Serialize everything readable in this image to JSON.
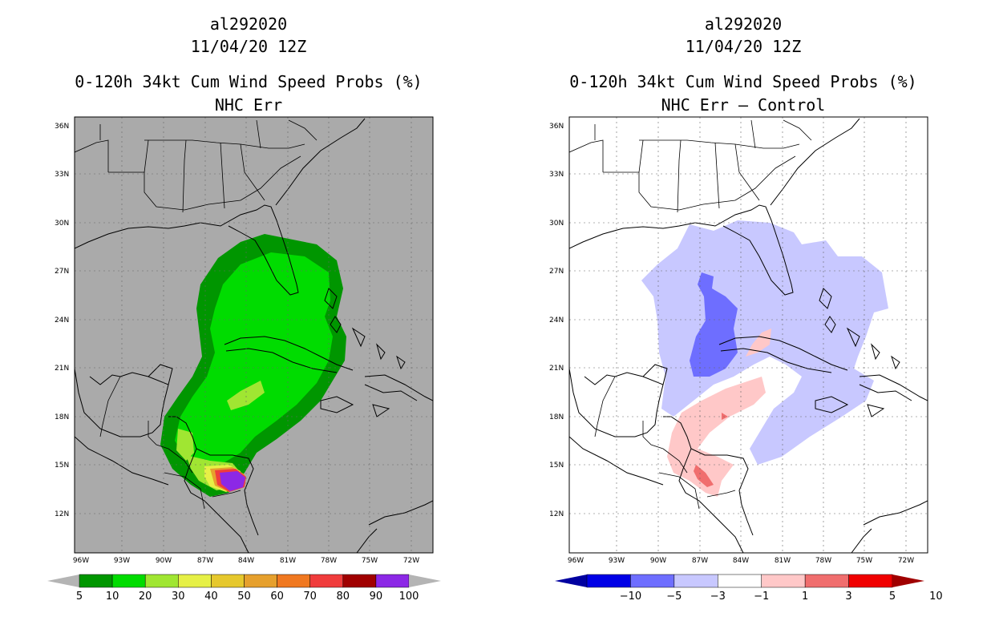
{
  "left_panel": {
    "storm_id": "al292020",
    "datetime": "11/04/20 12Z",
    "product": "0-120h 34kt Cum Wind Speed Probs (%)",
    "subtitle": "NHC Err",
    "lat_labels": [
      "36N",
      "33N",
      "30N",
      "27N",
      "24N",
      "21N",
      "18N",
      "15N",
      "12N"
    ],
    "lon_labels": [
      "96W",
      "93W",
      "90W",
      "87W",
      "84W",
      "81W",
      "78W",
      "75W",
      "72W"
    ],
    "colorbar": {
      "labels": [
        "5",
        "10",
        "20",
        "30",
        "40",
        "50",
        "60",
        "70",
        "80",
        "90",
        "100"
      ],
      "colors": [
        "#009600",
        "#00dc00",
        "#a0e632",
        "#e6f046",
        "#e6c82d",
        "#e6a02d",
        "#f07820",
        "#f03c3c",
        "#a00000",
        "#8c28e6"
      ],
      "extend_left": "#b4b4b4",
      "extend_right": "#b4b4b4"
    }
  },
  "right_panel": {
    "storm_id": "al292020",
    "datetime": "11/04/20 12Z",
    "product": "0-120h 34kt Cum Wind Speed Probs (%)",
    "subtitle": "NHC Err – Control",
    "lat_labels": [
      "36N",
      "33N",
      "30N",
      "27N",
      "24N",
      "21N",
      "18N",
      "15N",
      "12N"
    ],
    "lon_labels": [
      "96W",
      "93W",
      "90W",
      "87W",
      "84W",
      "81W",
      "78W",
      "75W",
      "72W"
    ],
    "colorbar": {
      "labels": [
        "−10",
        "−5",
        "−3",
        "−1",
        "1",
        "3",
        "5",
        "10"
      ],
      "colors": [
        "#0000e6",
        "#6e6eff",
        "#c8c8ff",
        "#ffffff",
        "#ffc8c8",
        "#f06e6e",
        "#f00000"
      ],
      "extend_left": "#0000a0",
      "extend_right": "#a00000"
    }
  }
}
